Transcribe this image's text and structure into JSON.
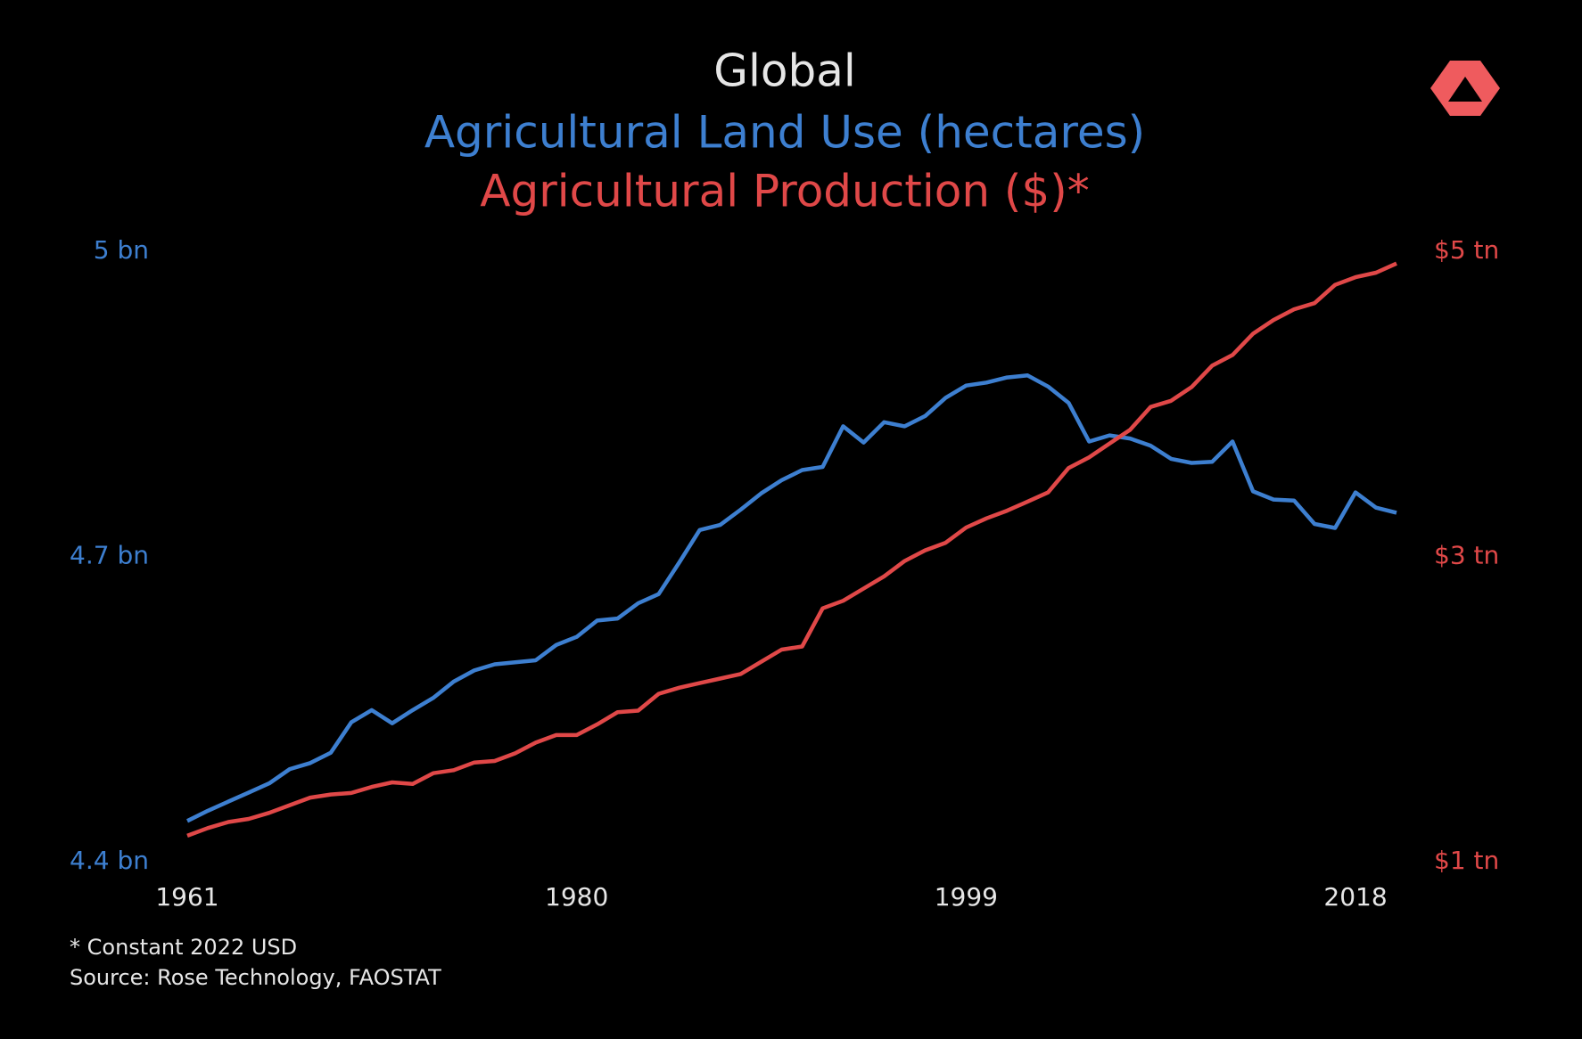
{
  "chart_data": {
    "type": "line",
    "title": "Global",
    "footnotes": [
      "* Constant 2022 USD",
      "Source: Rose Technology, FAOSTAT"
    ],
    "x": [
      1961,
      1962,
      1963,
      1964,
      1965,
      1966,
      1967,
      1968,
      1969,
      1970,
      1971,
      1972,
      1973,
      1974,
      1975,
      1976,
      1977,
      1978,
      1979,
      1980,
      1981,
      1982,
      1983,
      1984,
      1985,
      1986,
      1987,
      1988,
      1989,
      1990,
      1991,
      1992,
      1993,
      1994,
      1995,
      1996,
      1997,
      1998,
      1999,
      2000,
      2001,
      2002,
      2003,
      2004,
      2005,
      2006,
      2007,
      2008,
      2009,
      2010,
      2011,
      2012,
      2013,
      2014,
      2015,
      2016,
      2017,
      2018,
      2019,
      2020
    ],
    "xlim": [
      1961,
      2020
    ],
    "xticks": [
      1961,
      1980,
      1999,
      2018
    ],
    "ylim": [
      4.4,
      5.0
    ],
    "yticks": [
      {
        "value": 4.4,
        "label": "4.4 bn"
      },
      {
        "value": 4.7,
        "label": "4.7 bn"
      },
      {
        "value": 5.0,
        "label": "5 bn"
      }
    ],
    "y2lim": [
      1,
      5
    ],
    "y2ticks": [
      {
        "value": 1,
        "label": "$1 tn"
      },
      {
        "value": 3,
        "label": "$3 tn"
      },
      {
        "value": 5,
        "label": "$5 tn"
      }
    ],
    "series": [
      {
        "name": "Agricultural Land Use (hectares)",
        "color": "#3d7fd0",
        "axis": "y",
        "values": [
          4.44,
          4.45,
          4.459,
          4.468,
          4.477,
          4.491,
          4.497,
          4.507,
          4.537,
          4.549,
          4.536,
          4.549,
          4.561,
          4.577,
          4.588,
          4.594,
          4.596,
          4.598,
          4.613,
          4.621,
          4.637,
          4.639,
          4.654,
          4.663,
          4.694,
          4.726,
          4.731,
          4.746,
          4.762,
          4.775,
          4.785,
          4.788,
          4.828,
          4.812,
          4.832,
          4.828,
          4.838,
          4.856,
          4.868,
          4.871,
          4.876,
          4.878,
          4.867,
          4.851,
          4.813,
          4.819,
          4.816,
          4.809,
          4.796,
          4.792,
          4.793,
          4.813,
          4.764,
          4.756,
          4.755,
          4.732,
          4.728,
          4.763,
          4.748,
          4.743
        ]
      },
      {
        "name": "Agricultural Production ($)*",
        "color": "#e04848",
        "axis": "y2",
        "values": [
          1.17,
          1.22,
          1.26,
          1.28,
          1.32,
          1.37,
          1.42,
          1.44,
          1.45,
          1.49,
          1.52,
          1.51,
          1.58,
          1.6,
          1.65,
          1.66,
          1.71,
          1.78,
          1.83,
          1.83,
          1.9,
          1.98,
          1.99,
          2.1,
          2.14,
          2.17,
          2.2,
          2.23,
          2.31,
          2.39,
          2.41,
          2.66,
          2.71,
          2.79,
          2.87,
          2.97,
          3.04,
          3.09,
          3.19,
          3.25,
          3.3,
          3.36,
          3.42,
          3.58,
          3.65,
          3.74,
          3.83,
          3.98,
          4.02,
          4.11,
          4.25,
          4.32,
          4.46,
          4.55,
          4.62,
          4.66,
          4.78,
          4.83,
          4.86,
          4.92
        ]
      }
    ]
  }
}
